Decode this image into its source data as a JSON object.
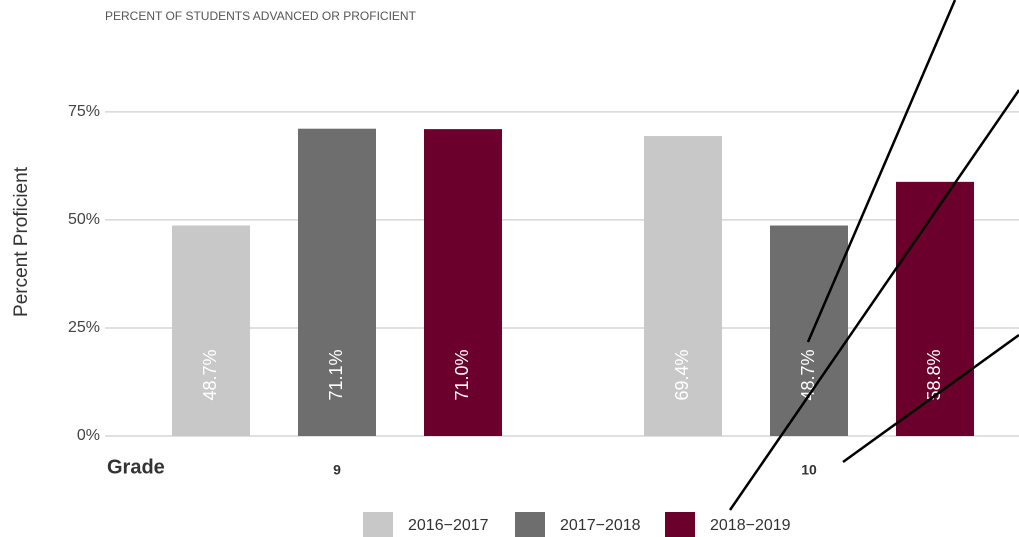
{
  "chart_data": {
    "type": "bar",
    "subtitle": "PERCENT OF STUDENTS ADVANCED OR PROFICIENT",
    "y_label": "Percent Proficient",
    "x_label": "Grade",
    "categories": [
      "9",
      "10"
    ],
    "series": [
      {
        "name": "2016−2017",
        "color": "#c8c8c8",
        "values": [
          48.7,
          69.4
        ],
        "value_labels": [
          "48.7%",
          "69.4%"
        ]
      },
      {
        "name": "2017−2018",
        "color": "#6e6e6e",
        "values": [
          71.1,
          48.7
        ],
        "value_labels": [
          "71.1%",
          "48.7%"
        ]
      },
      {
        "name": "2018−2019",
        "color": "#6b002c",
        "values": [
          71.0,
          58.8
        ],
        "value_labels": [
          "71.0%",
          "58.8%"
        ]
      }
    ],
    "ylim": [
      0,
      90
    ],
    "yticks": [
      {
        "value": 0,
        "label": "0%"
      },
      {
        "value": 25,
        "label": "25%"
      },
      {
        "value": 50,
        "label": "50%"
      },
      {
        "value": 75,
        "label": "75%"
      }
    ],
    "grid": true,
    "legend": "bottom"
  }
}
